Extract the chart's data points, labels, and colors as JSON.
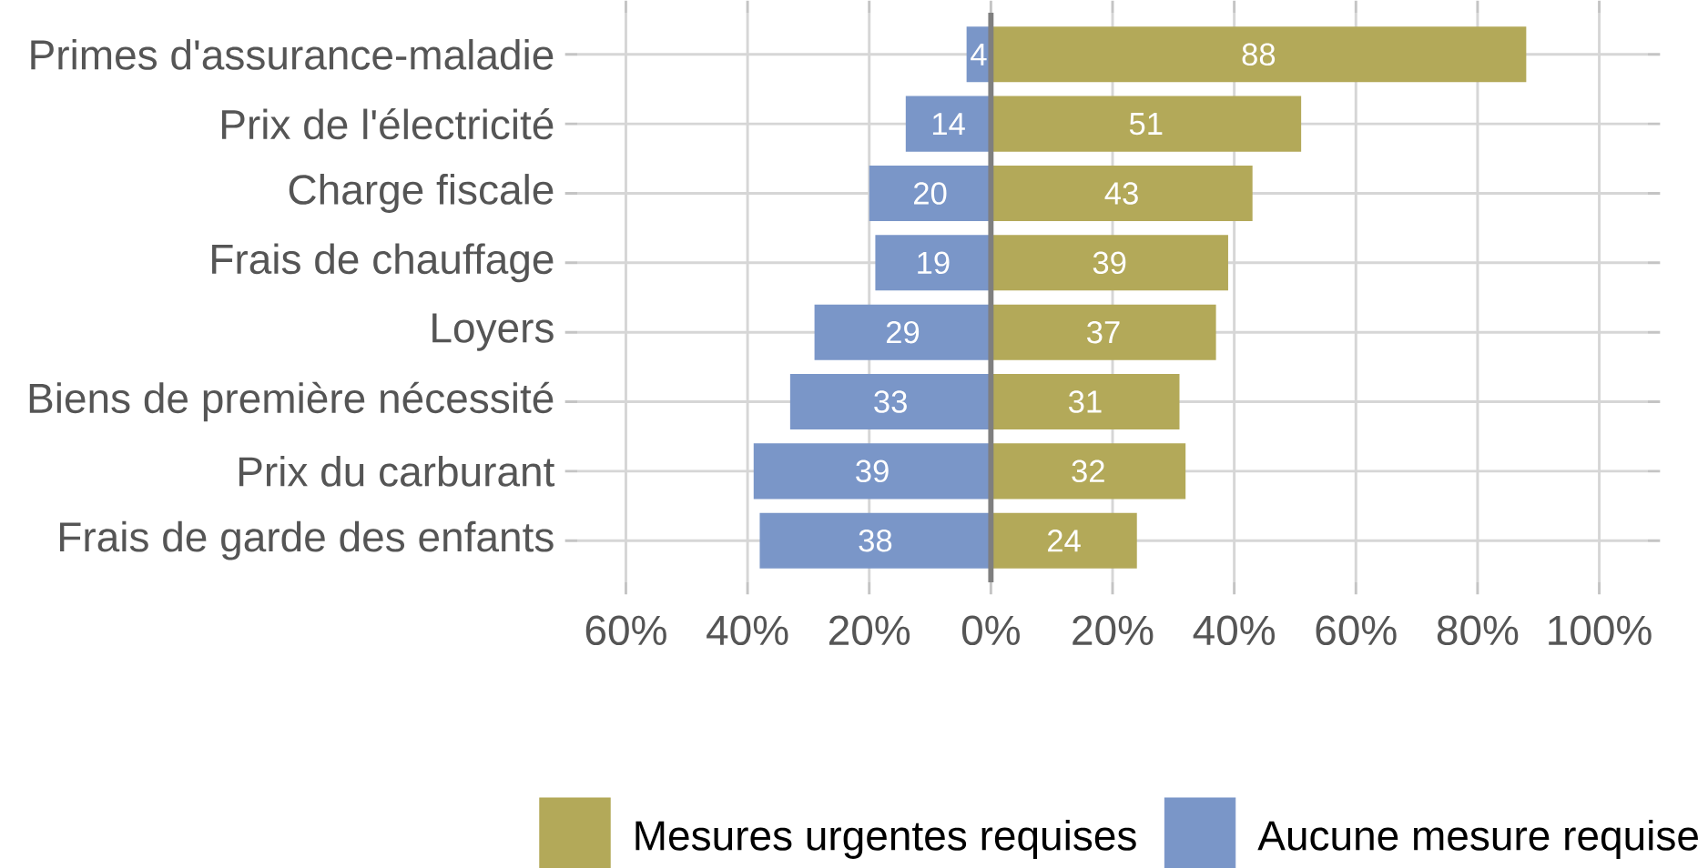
{
  "chart_data": {
    "type": "bar",
    "orientation": "horizontal",
    "stacked": true,
    "categories": [
      "Primes d'assurance-maladie",
      "Prix de l'électricité",
      "Charge fiscale",
      "Frais de chauffage",
      "Loyers",
      "Biens de première nécessité",
      "Prix du carburant",
      "Frais de garde des enfants"
    ],
    "series": [
      {
        "name": "Mesures urgentes requises",
        "color": "#b3a959",
        "values": [
          88,
          51,
          43,
          39,
          37,
          31,
          32,
          24
        ],
        "value_labels": [
          "88",
          "51",
          "43",
          "39",
          "37",
          "31",
          "32",
          "24"
        ]
      },
      {
        "name": "Aucune mesure requise",
        "color": "#7a96c8",
        "values": [
          -4,
          -14,
          -20,
          -19,
          -29,
          -33,
          -39,
          -38
        ]
      }
    ],
    "annotations": [
      {
        "text": "4",
        "x": -2,
        "y": "Primes d'assurance-maladie"
      },
      {
        "text": "14",
        "x": -7,
        "y": "Prix de l'électricité"
      },
      {
        "text": "20",
        "x": -10,
        "y": "Charge fiscale"
      },
      {
        "text": "19",
        "x": -9.5,
        "y": "Frais de chauffage"
      },
      {
        "text": "29",
        "x": -14.5,
        "y": "Loyers"
      },
      {
        "text": "33",
        "x": -16.5,
        "y": "Biens de première nécessité"
      },
      {
        "text": "39",
        "x": -19.5,
        "y": "Prix du carburant"
      },
      {
        "text": "38",
        "x": -19,
        "y": "Frais de garde des enfants"
      }
    ],
    "xlim": [
      -68,
      108
    ],
    "xticks": [
      {
        "value": -60,
        "label": "60%"
      },
      {
        "value": -40,
        "label": "40%"
      },
      {
        "value": -20,
        "label": "20%"
      },
      {
        "value": 0,
        "label": "0%"
      },
      {
        "value": 20,
        "label": "20%"
      },
      {
        "value": 40,
        "label": "40%"
      },
      {
        "value": 60,
        "label": "60%"
      },
      {
        "value": 80,
        "label": "80%"
      },
      {
        "value": 100,
        "label": "100%"
      }
    ],
    "grid": true,
    "legend": "bottom right",
    "ref_lines": [
      {
        "axis": "x",
        "value": 0,
        "color": "#7f7f7f"
      }
    ]
  }
}
